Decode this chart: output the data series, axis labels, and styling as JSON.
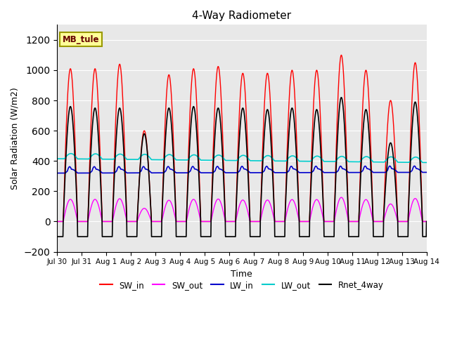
{
  "title": "4-Way Radiometer",
  "xlabel": "Time",
  "ylabel": "Solar Radiation (W/m2)",
  "ylim": [
    -200,
    1300
  ],
  "yticks": [
    -200,
    0,
    200,
    400,
    600,
    800,
    1000,
    1200
  ],
  "num_days": 15,
  "annotation_text": "MB_tule",
  "annotation_bg": "#FFFF99",
  "annotation_border": "#999900",
  "colors": {
    "SW_in": "#FF0000",
    "SW_out": "#FF00FF",
    "LW_in": "#0000CC",
    "LW_out": "#00CCCC",
    "Rnet_4way": "#000000"
  },
  "sw_in_peaks": [
    1010,
    1010,
    1040,
    600,
    970,
    1010,
    1025,
    980,
    980,
    1000,
    1000,
    1100,
    1000,
    800,
    1050
  ],
  "rnet_peaks": [
    760,
    750,
    750,
    580,
    750,
    760,
    750,
    750,
    740,
    750,
    740,
    820,
    740,
    520,
    790
  ],
  "lw_out_base": 415,
  "lw_out_amplitude": 35,
  "lw_out_trend": -25,
  "lw_in_base": 320,
  "lw_in_amplitude": 25,
  "lw_in_trend": 5,
  "sw_out_scale": 0.145,
  "rnet_night": -100,
  "plot_bg": "#E8E8E8",
  "tick_labels": [
    "Jul 30",
    "Jul 31",
    "Aug 1",
    "Aug 2",
    "Aug 3",
    "Aug 4",
    "Aug 5",
    "Aug 6",
    "Aug 7",
    "Aug 8",
    "Aug 9",
    "Aug 10",
    "Aug 11",
    "Aug 12",
    "Aug 13",
    "Aug 14"
  ],
  "figsize": [
    6.4,
    4.8
  ],
  "dpi": 100
}
